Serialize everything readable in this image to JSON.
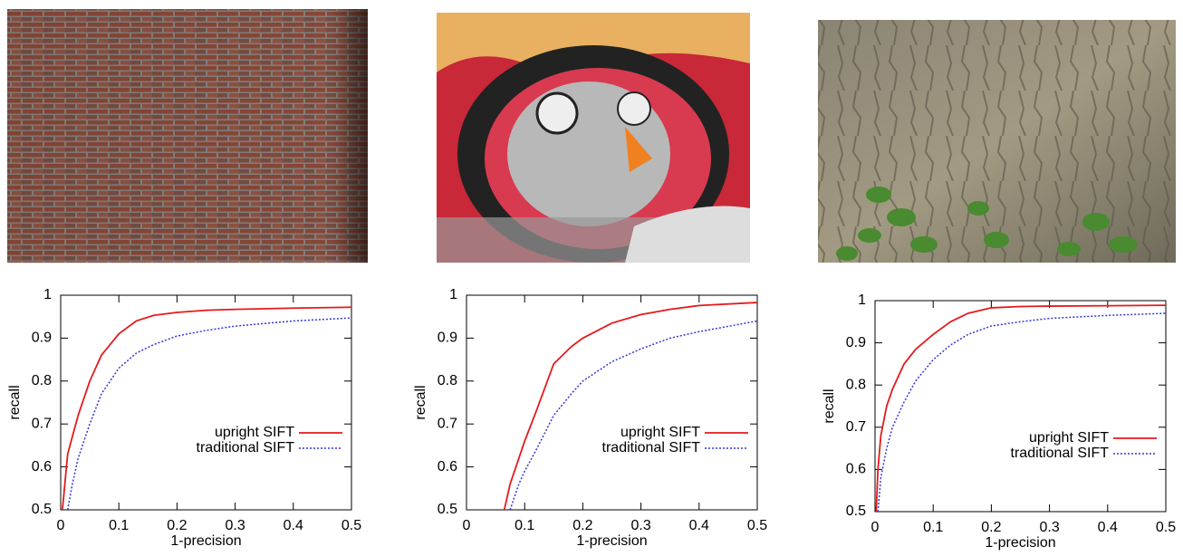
{
  "chart_data": [
    {
      "type": "line",
      "xlabel": "1-precision",
      "ylabel": "recall",
      "x": [
        0.003,
        0.012,
        0.02,
        0.03,
        0.05,
        0.07,
        0.1,
        0.13,
        0.16,
        0.2,
        0.25,
        0.3,
        0.4,
        0.5
      ],
      "series": [
        {
          "name": "upright SIFT",
          "color": "#e41a1c",
          "dash": "solid",
          "values": [
            0.5,
            0.63,
            0.67,
            0.72,
            0.8,
            0.86,
            0.91,
            0.94,
            0.953,
            0.96,
            0.965,
            0.967,
            0.97,
            0.972
          ]
        },
        {
          "name": "traditional SIFT",
          "color": "#3333dd",
          "dash": "dotted",
          "values": [
            null,
            0.5,
            0.56,
            0.62,
            0.7,
            0.77,
            0.83,
            0.865,
            0.885,
            0.905,
            0.918,
            0.928,
            0.94,
            0.947
          ]
        }
      ],
      "xlim": [
        0,
        0.5
      ],
      "ylim": [
        0.5,
        1
      ],
      "xticks": [
        0,
        0.1,
        0.2,
        0.3,
        0.4,
        0.5
      ],
      "yticks": [
        0.5,
        0.6,
        0.7,
        0.8,
        0.9,
        1
      ],
      "legend": "right"
    },
    {
      "type": "line",
      "xlabel": "1-precision",
      "ylabel": "recall",
      "x": [
        0.065,
        0.075,
        0.09,
        0.1,
        0.12,
        0.15,
        0.18,
        0.2,
        0.25,
        0.3,
        0.35,
        0.4,
        0.5
      ],
      "series": [
        {
          "name": "upright SIFT",
          "color": "#e41a1c",
          "dash": "solid",
          "values": [
            0.5,
            0.56,
            0.62,
            0.66,
            0.73,
            0.84,
            0.88,
            0.9,
            0.935,
            0.955,
            0.967,
            0.976,
            0.983
          ]
        },
        {
          "name": "traditional SIFT",
          "color": "#3333dd",
          "dash": "dotted",
          "values": [
            null,
            0.5,
            0.56,
            0.59,
            0.64,
            0.72,
            0.77,
            0.8,
            0.845,
            0.875,
            0.9,
            0.915,
            0.94
          ]
        }
      ],
      "xlim": [
        0,
        0.5
      ],
      "ylim": [
        0.5,
        1
      ],
      "xticks": [
        0,
        0.1,
        0.2,
        0.3,
        0.4,
        0.5
      ],
      "yticks": [
        0.5,
        0.6,
        0.7,
        0.8,
        0.9,
        1
      ],
      "legend": "right"
    },
    {
      "type": "line",
      "xlabel": "1-precision",
      "ylabel": "recall",
      "x": [
        0.002,
        0.005,
        0.01,
        0.02,
        0.03,
        0.05,
        0.07,
        0.1,
        0.13,
        0.16,
        0.2,
        0.25,
        0.3,
        0.4,
        0.5
      ],
      "series": [
        {
          "name": "upright SIFT",
          "color": "#e41a1c",
          "dash": "solid",
          "values": [
            0.5,
            0.6,
            0.68,
            0.75,
            0.79,
            0.85,
            0.885,
            0.92,
            0.95,
            0.97,
            0.983,
            0.986,
            0.987,
            0.988,
            0.989
          ]
        },
        {
          "name": "traditional SIFT",
          "color": "#3333dd",
          "dash": "dotted",
          "values": [
            null,
            0.5,
            0.58,
            0.65,
            0.7,
            0.76,
            0.81,
            0.86,
            0.895,
            0.92,
            0.94,
            0.95,
            0.958,
            0.965,
            0.97
          ]
        }
      ],
      "xlim": [
        0,
        0.5
      ],
      "ylim": [
        0.5,
        1
      ],
      "xticks": [
        0,
        0.1,
        0.2,
        0.3,
        0.4,
        0.5
      ],
      "yticks": [
        0.5,
        0.6,
        0.7,
        0.8,
        0.9,
        1
      ],
      "legend": "right"
    }
  ]
}
